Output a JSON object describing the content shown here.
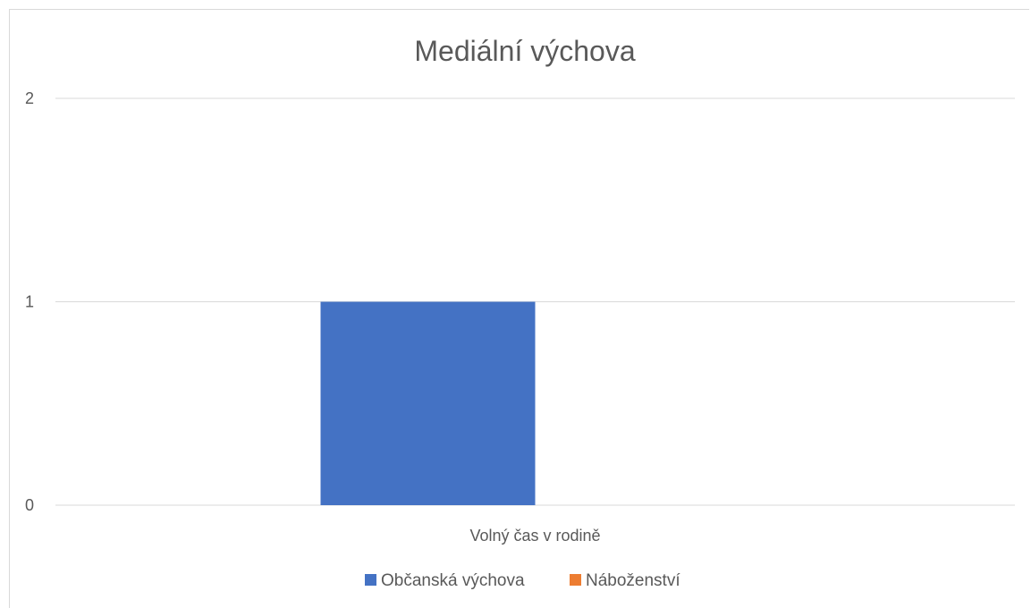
{
  "chart_data": {
    "type": "bar",
    "title": "Mediální výchova",
    "xlabel": "",
    "ylabel": "",
    "categories": [
      "Volný čas v rodině"
    ],
    "series": [
      {
        "name": "Občanská výchova",
        "values": [
          1
        ],
        "color": "#4472C4"
      },
      {
        "name": "Náboženství",
        "values": [
          0
        ],
        "color": "#ED7D31"
      }
    ],
    "ylim": [
      0,
      2
    ],
    "yticks": [
      "0",
      "1",
      "2"
    ],
    "grid": true,
    "legend_position": "bottom"
  }
}
